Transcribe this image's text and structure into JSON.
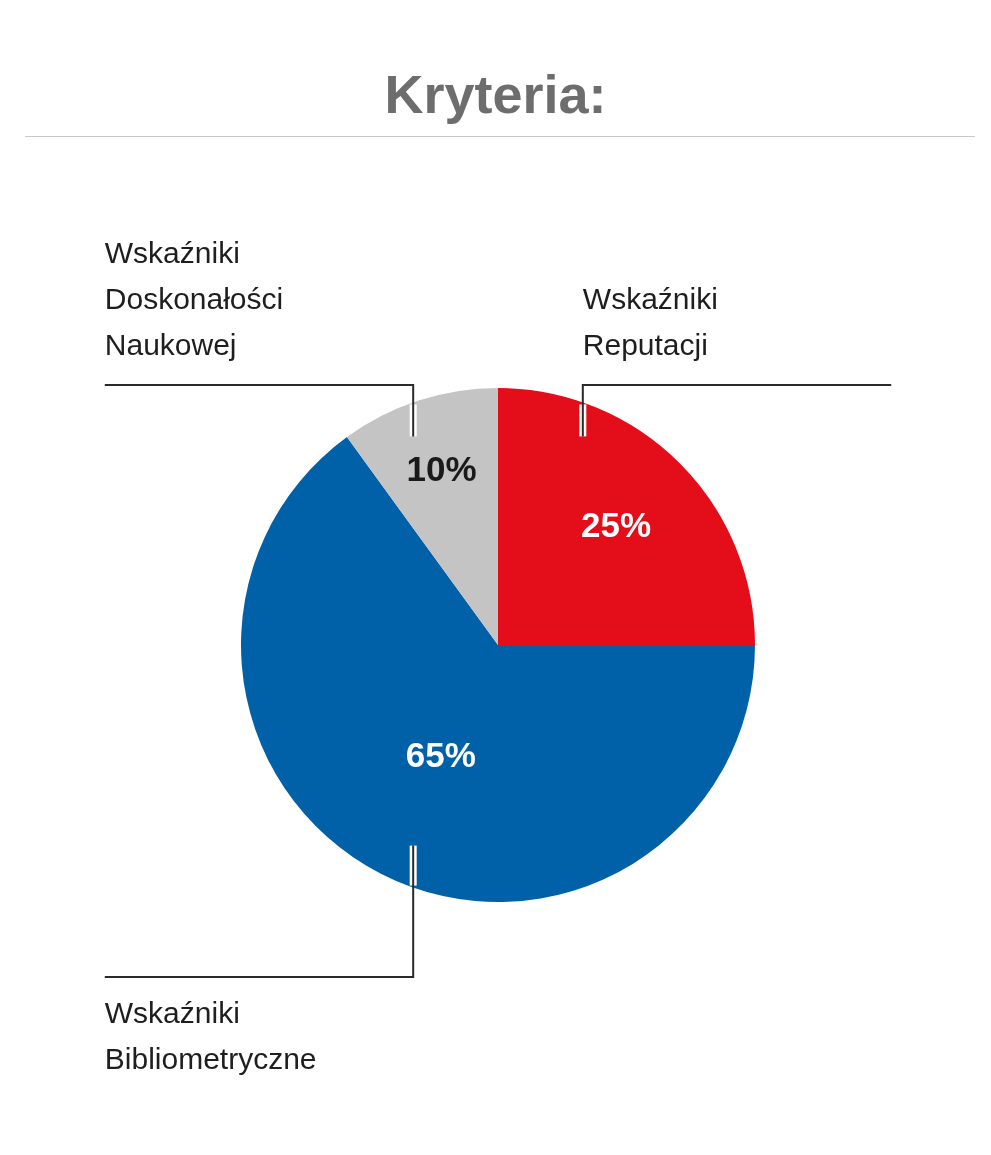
{
  "chart_data": {
    "type": "pie",
    "title": "Kryteria:",
    "categories": [
      "Wskaźniki Reputacji",
      "Wskaźniki Bibliometryczne",
      "Wskaźniki Doskonałości Naukowej"
    ],
    "values": [
      25,
      65,
      10
    ],
    "colors": [
      "#e30e19",
      "#0061a8",
      "#c4c4c4"
    ],
    "value_labels": [
      "25%",
      "65%",
      "10%"
    ]
  }
}
